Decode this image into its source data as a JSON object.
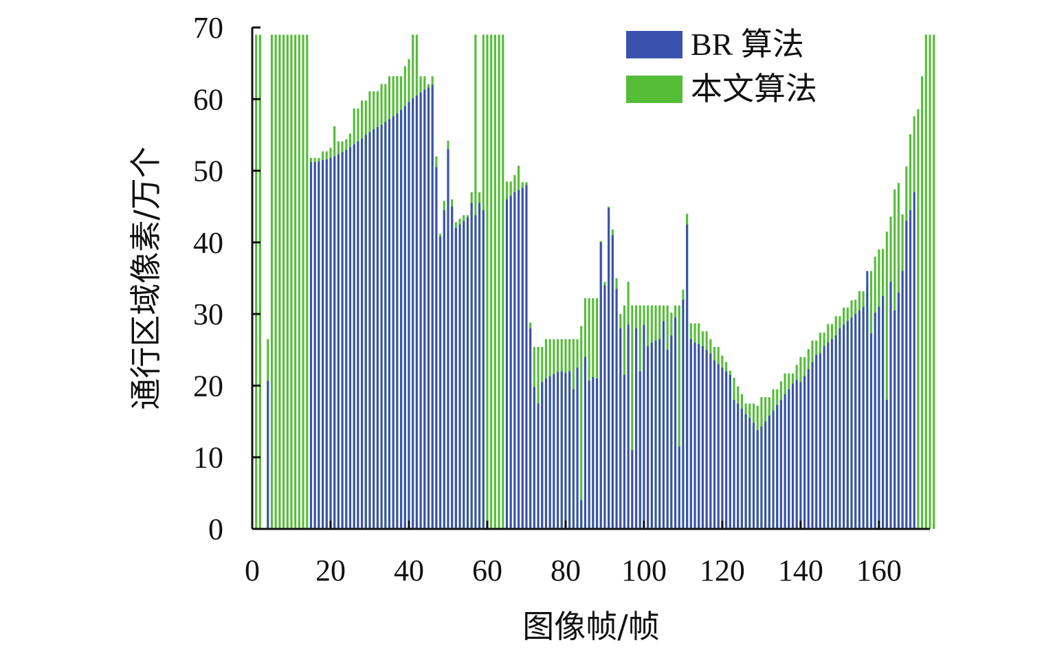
{
  "chart_data": {
    "type": "bar",
    "xlabel": "图像帧/帧",
    "ylabel": "通行区域像素/万个",
    "xlim": [
      0,
      173
    ],
    "ylim": [
      0,
      70
    ],
    "xticks": [
      "0",
      "20",
      "40",
      "60",
      "80",
      "100",
      "120",
      "140",
      "160"
    ],
    "xtick_values": [
      0,
      20,
      40,
      60,
      80,
      100,
      120,
      140,
      160
    ],
    "yticks": [
      "0",
      "10",
      "20",
      "30",
      "40",
      "50",
      "60",
      "70"
    ],
    "ytick_values": [
      0,
      10,
      20,
      30,
      40,
      50,
      60,
      70
    ],
    "legend_position": "top-right",
    "series": [
      {
        "name": "BR 算法",
        "color": "#3a52ae",
        "values": [
          0,
          0,
          0,
          20.7,
          0,
          0,
          0,
          0,
          0,
          0,
          0,
          0,
          0,
          0,
          51.2,
          51.2,
          51.3,
          51.5,
          51.6,
          51.8,
          52.0,
          52.3,
          52.6,
          52.9,
          53.3,
          53.7,
          54.1,
          54.5,
          55.0,
          55.4,
          55.8,
          56.1,
          56.4,
          56.8,
          57.2,
          57.6,
          58.0,
          58.5,
          59.0,
          59.6,
          60.1,
          60.5,
          60.9,
          61.3,
          61.6,
          62.0,
          50.5,
          40.8,
          44.5,
          53.0,
          45.0,
          42.0,
          42.5,
          43.0,
          43.5,
          45.5,
          43.8,
          45.5,
          44.5,
          1.0,
          0,
          0,
          0,
          0,
          46.0,
          46.5,
          47.0,
          47.3,
          47.6,
          48.0,
          28.0,
          19.8,
          17.5,
          20.5,
          21.0,
          21.3,
          21.6,
          21.9,
          22.0,
          21.8,
          22.0,
          19.5,
          22.5,
          4.0,
          24.0,
          20.7,
          21.2,
          21.0,
          40.0,
          34.0,
          44.8,
          41.0,
          33.5,
          28.0,
          21.5,
          28.5,
          11.0,
          28.0,
          22.0,
          28.5,
          25.5,
          26.0,
          26.3,
          26.5,
          29.0,
          25.0,
          27.0,
          29.5,
          11.5,
          32.0,
          42.5,
          26.5,
          26.0,
          25.8,
          25.5,
          25.0,
          24.5,
          23.5,
          23.0,
          22.5,
          22.0,
          21.5,
          18.0,
          17.5,
          16.8,
          16.0,
          15.5,
          14.8,
          13.8,
          14.3,
          15.0,
          15.8,
          16.5,
          17.3,
          18.0,
          18.8,
          19.5,
          20.3,
          20.8,
          20.5,
          21.3,
          22.3,
          23.3,
          24.3,
          24.5,
          25.5,
          26.0,
          26.5,
          27.0,
          28.0,
          28.5,
          29.0,
          29.5,
          30.0,
          30.5,
          31.0,
          36.0,
          27.3,
          30.2,
          31.0,
          32.5,
          18.0,
          34.5,
          30.5,
          33.0,
          36.0,
          43.0,
          44.5,
          47.0,
          0,
          0,
          0
        ],
        "stack_totals": [
          69,
          69,
          0,
          26.5,
          69,
          69,
          69,
          69,
          69,
          69,
          69,
          69,
          69,
          69,
          51.8,
          51.8,
          51.8,
          52.7,
          52.7,
          53.2,
          56.2,
          54.1,
          54.1,
          54.4,
          55.2,
          58.7,
          58.7,
          59.8,
          59.8,
          61.1,
          61.1,
          61.1,
          62.1,
          62.1,
          63.2,
          63.2,
          63.2,
          63.2,
          64.6,
          65.6,
          69,
          69,
          63.2,
          63.2,
          62.1,
          63.2,
          52.0,
          41.2,
          45.8,
          54.2,
          46.0,
          42.8,
          43.3,
          43.8,
          43.8,
          47.0,
          69,
          47.0,
          69,
          69,
          69,
          69,
          69,
          69,
          48.5,
          48.5,
          49.4,
          50.7,
          48.4,
          48.4,
          28.8,
          25.4,
          25.4,
          25.4,
          26.5,
          26.5,
          26.5,
          26.5,
          26.5,
          26.5,
          26.5,
          26.5,
          26.5,
          28.3,
          32.2,
          32.2,
          32.2,
          32.2,
          40.2,
          34.5,
          45.0,
          41.8,
          35.0,
          30.0,
          31.2,
          34.5,
          31.2,
          31.2,
          31.2,
          31.2,
          31.2,
          31.2,
          31.2,
          31.2,
          31.2,
          31.2,
          30.2,
          31.2,
          31.2,
          33.4,
          44.0,
          28.7,
          28.7,
          28.7,
          27.6,
          27.6,
          26.5,
          25.4,
          25.4,
          24.2,
          23.3,
          22.1,
          21.1,
          19.9,
          18.8,
          17.5,
          17.5,
          17.5,
          17.2,
          18.4,
          18.4,
          18.4,
          19.5,
          19.5,
          20.6,
          21.7,
          21.7,
          21.7,
          22.9,
          24.0,
          24.0,
          25.1,
          26.3,
          26.3,
          27.4,
          27.4,
          28.6,
          28.6,
          29.7,
          29.7,
          30.9,
          30.9,
          31.9,
          32.0,
          33.2,
          33.2,
          33.9,
          36.0,
          38.0,
          39.0,
          39.1,
          41.5,
          43.6,
          47.4,
          48.3,
          43.9,
          50.6,
          55.1,
          57.6,
          58.6,
          63.2,
          69,
          69,
          69
        ]
      },
      {
        "name": "本文算法",
        "color": "#55bd38"
      }
    ]
  }
}
